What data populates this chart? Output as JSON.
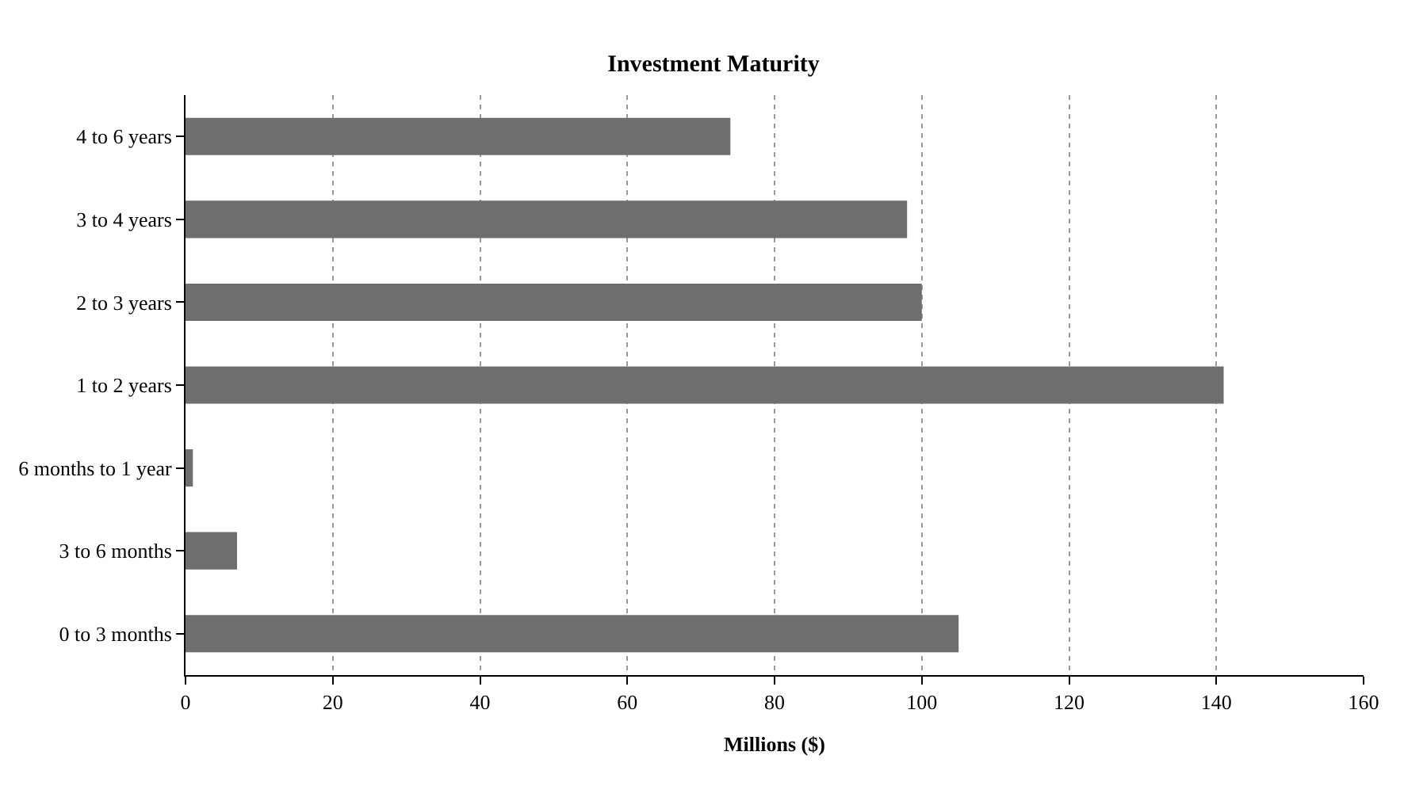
{
  "chart_data": {
    "type": "bar",
    "orientation": "horizontal",
    "title": "Investment Maturity",
    "xlabel": "Millions ($)",
    "categories": [
      "4 to 6 years",
      "3 to 4 years",
      "2 to 3 years",
      "1 to 2 years",
      "6 months to 1 year",
      "3 to 6 months",
      "0 to 3 months"
    ],
    "values": [
      74,
      98,
      100,
      141,
      1,
      7,
      105
    ],
    "color": "#6e6e6e",
    "xlim": [
      0,
      160
    ],
    "xticks": [
      0,
      20,
      40,
      60,
      80,
      100,
      120,
      140,
      160
    ],
    "grid": "x",
    "legend": false
  }
}
